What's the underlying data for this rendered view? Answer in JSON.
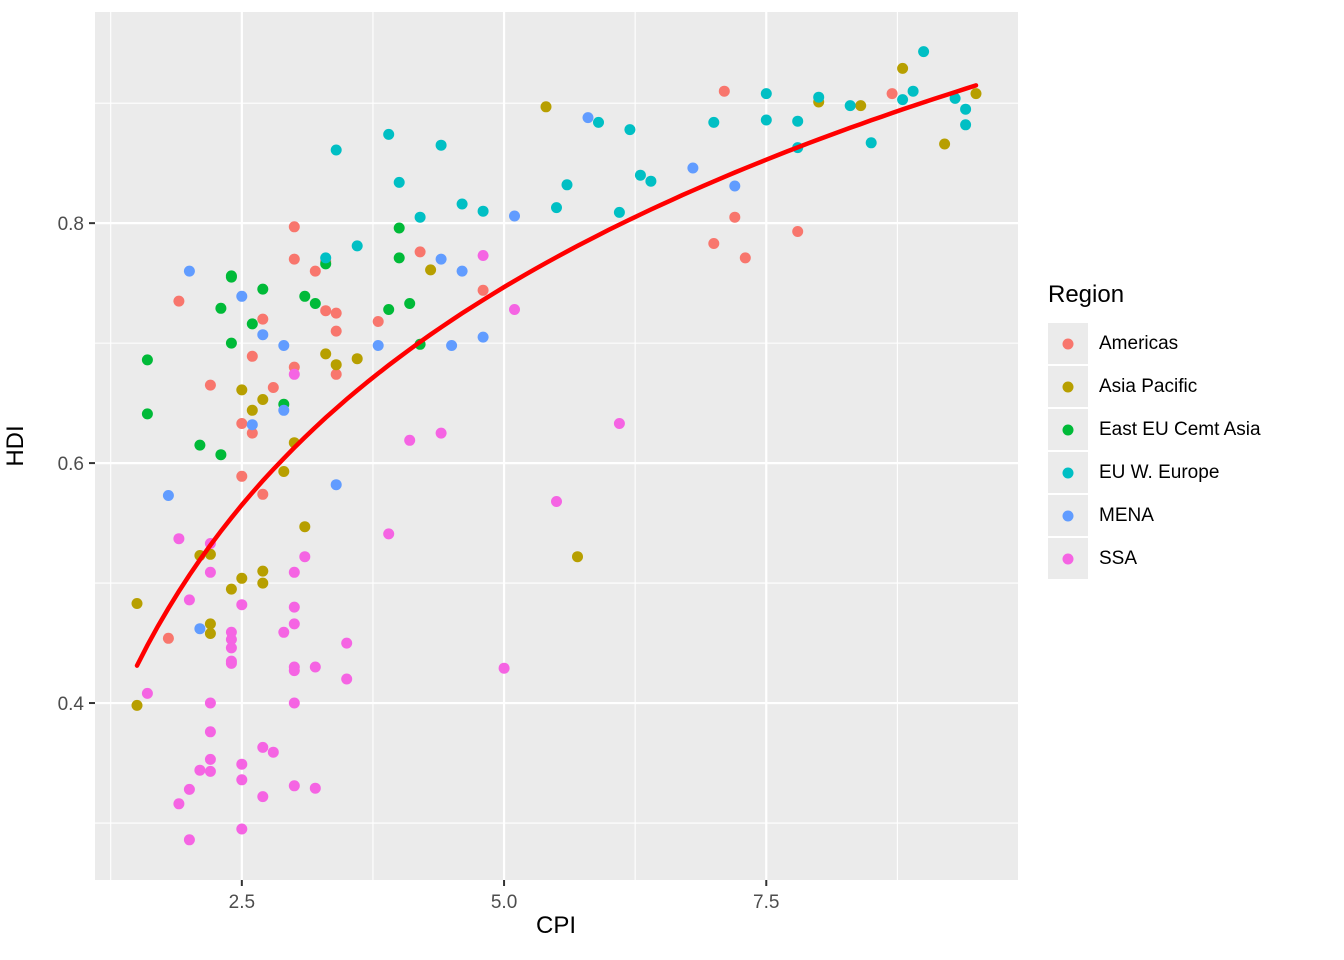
{
  "chart_data": {
    "type": "scatter",
    "title": "",
    "xlabel": "CPI",
    "ylabel": "HDI",
    "x_domain": [
      1.1,
      9.9
    ],
    "y_domain": [
      0.2525,
      0.976
    ],
    "x_major_ticks": [
      2.5,
      5.0,
      7.5
    ],
    "x_tick_labels": [
      "2.5",
      "5.0",
      "7.5"
    ],
    "x_minor_ticks": [
      1.25,
      3.75,
      6.25,
      8.75
    ],
    "y_major_ticks": [
      0.4,
      0.6,
      0.8
    ],
    "y_tick_labels": [
      "0.4",
      "0.6",
      "0.8"
    ],
    "y_minor_ticks": [
      0.3,
      0.5,
      0.7,
      0.9
    ],
    "grid": true,
    "panel_bg": "#EBEBEB",
    "grid_color": "#FFFFFF",
    "tick_mark_color": "#333333",
    "tick_label_color": "#4D4D4D",
    "legend_title": "Region",
    "legend_position": "right",
    "legend_key_bg": "#EBEBEB",
    "trend": {
      "type": "log_fit",
      "color": "#FF0000",
      "a": 0.325,
      "b": 0.262,
      "x_start": 1.5,
      "x_end": 9.5
    },
    "series": [
      {
        "name": "Americas",
        "color": "#F8766D",
        "points": [
          [
            3.0,
            0.797
          ],
          [
            7.3,
            0.771
          ],
          [
            7.8,
            0.793
          ],
          [
            2.8,
            0.663
          ],
          [
            3.8,
            0.718
          ],
          [
            8.7,
            0.908
          ],
          [
            7.2,
            0.805
          ],
          [
            3.4,
            0.71
          ],
          [
            4.8,
            0.744
          ],
          [
            4.2,
            0.776
          ],
          [
            2.6,
            0.689
          ],
          [
            2.7,
            0.72
          ],
          [
            3.4,
            0.674
          ],
          [
            2.7,
            0.574
          ],
          [
            2.5,
            0.633
          ],
          [
            1.8,
            0.454
          ],
          [
            2.6,
            0.625
          ],
          [
            3.3,
            0.727
          ],
          [
            3.0,
            0.77
          ],
          [
            2.5,
            0.589
          ],
          [
            3.3,
            0.768
          ],
          [
            2.2,
            0.665
          ],
          [
            3.4,
            0.725
          ],
          [
            3.0,
            0.68
          ],
          [
            3.2,
            0.76
          ],
          [
            7.1,
            0.91
          ],
          [
            7.0,
            0.783
          ],
          [
            1.9,
            0.735
          ]
        ]
      },
      {
        "name": "Asia Pacific",
        "color": "#B79F00",
        "points": [
          [
            1.5,
            0.398
          ],
          [
            8.8,
            0.929
          ],
          [
            2.7,
            0.5
          ],
          [
            5.7,
            0.522
          ],
          [
            2.1,
            0.523
          ],
          [
            3.6,
            0.687
          ],
          [
            8.4,
            0.898
          ],
          [
            3.1,
            0.547
          ],
          [
            3.0,
            0.617
          ],
          [
            8.0,
            0.901
          ],
          [
            5.4,
            0.897
          ],
          [
            2.2,
            0.524
          ],
          [
            4.3,
            0.761
          ],
          [
            2.5,
            0.661
          ],
          [
            2.7,
            0.653
          ],
          [
            1.5,
            0.483
          ],
          [
            2.2,
            0.458
          ],
          [
            9.5,
            0.908
          ],
          [
            2.5,
            0.504
          ],
          [
            2.2,
            0.466
          ],
          [
            2.6,
            0.644
          ],
          [
            9.2,
            0.866
          ],
          [
            2.7,
            0.51
          ],
          [
            3.3,
            0.691
          ],
          [
            3.4,
            0.682
          ],
          [
            2.4,
            0.495
          ],
          [
            2.9,
            0.593
          ]
        ]
      },
      {
        "name": "East EU Cemt Asia",
        "color": "#00BA38",
        "points": [
          [
            3.1,
            0.739
          ],
          [
            2.6,
            0.716
          ],
          [
            2.4,
            0.7
          ],
          [
            2.4,
            0.756
          ],
          [
            3.2,
            0.733
          ],
          [
            4.0,
            0.796
          ],
          [
            4.1,
            0.733
          ],
          [
            2.7,
            0.745
          ],
          [
            2.1,
            0.615
          ],
          [
            3.9,
            0.728
          ],
          [
            2.9,
            0.649
          ],
          [
            4.0,
            0.771
          ],
          [
            2.4,
            0.755
          ],
          [
            3.3,
            0.766
          ],
          [
            2.3,
            0.607
          ],
          [
            4.2,
            0.699
          ],
          [
            1.6,
            0.686
          ],
          [
            2.3,
            0.729
          ],
          [
            1.6,
            0.641
          ]
        ]
      },
      {
        "name": "EU W. Europe",
        "color": "#00BFC4",
        "points": [
          [
            7.8,
            0.885
          ],
          [
            7.5,
            0.886
          ],
          [
            7.8,
            0.863
          ],
          [
            3.3,
            0.771
          ],
          [
            6.3,
            0.84
          ],
          [
            4.4,
            0.865
          ],
          [
            9.4,
            0.895
          ],
          [
            6.4,
            0.835
          ],
          [
            9.4,
            0.882
          ],
          [
            7.0,
            0.884
          ],
          [
            8.0,
            0.905
          ],
          [
            3.4,
            0.861
          ],
          [
            4.6,
            0.816
          ],
          [
            8.3,
            0.898
          ],
          [
            7.5,
            0.908
          ],
          [
            3.9,
            0.874
          ],
          [
            4.2,
            0.805
          ],
          [
            4.8,
            0.81
          ],
          [
            8.5,
            0.867
          ],
          [
            5.6,
            0.832
          ],
          [
            8.9,
            0.91
          ],
          [
            9.0,
            0.943
          ],
          [
            5.5,
            0.813
          ],
          [
            6.1,
            0.809
          ],
          [
            3.6,
            0.781
          ],
          [
            4.0,
            0.834
          ],
          [
            5.9,
            0.884
          ],
          [
            6.2,
            0.878
          ],
          [
            9.3,
            0.904
          ],
          [
            8.8,
            0.903
          ]
        ]
      },
      {
        "name": "MENA",
        "color": "#619CFF",
        "points": [
          [
            2.9,
            0.698
          ],
          [
            5.1,
            0.806
          ],
          [
            2.9,
            0.644
          ],
          [
            2.7,
            0.707
          ],
          [
            1.8,
            0.573
          ],
          [
            5.8,
            0.888
          ],
          [
            4.5,
            0.698
          ],
          [
            4.6,
            0.76
          ],
          [
            2.5,
            0.739
          ],
          [
            2.0,
            0.76
          ],
          [
            3.4,
            0.582
          ],
          [
            4.8,
            0.705
          ],
          [
            7.2,
            0.831
          ],
          [
            4.4,
            0.77
          ],
          [
            2.6,
            0.632
          ],
          [
            3.8,
            0.698
          ],
          [
            6.8,
            0.846
          ],
          [
            2.1,
            0.462
          ]
        ]
      },
      {
        "name": "SSA",
        "color": "#F564E3",
        "points": [
          [
            2.0,
            0.486
          ],
          [
            3.0,
            0.427
          ],
          [
            6.1,
            0.633
          ],
          [
            3.0,
            0.331
          ],
          [
            1.9,
            0.316
          ],
          [
            2.5,
            0.482
          ],
          [
            5.5,
            0.568
          ],
          [
            2.2,
            0.343
          ],
          [
            2.0,
            0.328
          ],
          [
            2.4,
            0.433
          ],
          [
            2.2,
            0.533
          ],
          [
            2.0,
            0.286
          ],
          [
            2.2,
            0.4
          ],
          [
            3.0,
            0.43
          ],
          [
            1.9,
            0.537
          ],
          [
            2.5,
            0.349
          ],
          [
            2.7,
            0.363
          ],
          [
            3.0,
            0.674
          ],
          [
            3.5,
            0.42
          ],
          [
            3.9,
            0.541
          ],
          [
            2.1,
            0.344
          ],
          [
            2.2,
            0.353
          ],
          [
            2.2,
            0.509
          ],
          [
            3.5,
            0.45
          ],
          [
            3.2,
            0.329
          ],
          [
            3.0,
            0.48
          ],
          [
            3.0,
            0.4
          ],
          [
            2.8,
            0.359
          ],
          [
            2.4,
            0.453
          ],
          [
            5.1,
            0.728
          ],
          [
            2.7,
            0.322
          ],
          [
            4.4,
            0.625
          ],
          [
            2.5,
            0.295
          ],
          [
            2.4,
            0.459
          ],
          [
            5.0,
            0.429
          ],
          [
            3.0,
            0.509
          ],
          [
            2.9,
            0.459
          ],
          [
            4.8,
            0.773
          ],
          [
            2.5,
            0.336
          ],
          [
            4.1,
            0.619
          ],
          [
            1.6,
            0.408
          ],
          [
            3.1,
            0.522
          ],
          [
            3.0,
            0.466
          ],
          [
            2.4,
            0.435
          ],
          [
            2.4,
            0.446
          ],
          [
            3.2,
            0.43
          ],
          [
            2.2,
            0.376
          ]
        ]
      }
    ]
  }
}
